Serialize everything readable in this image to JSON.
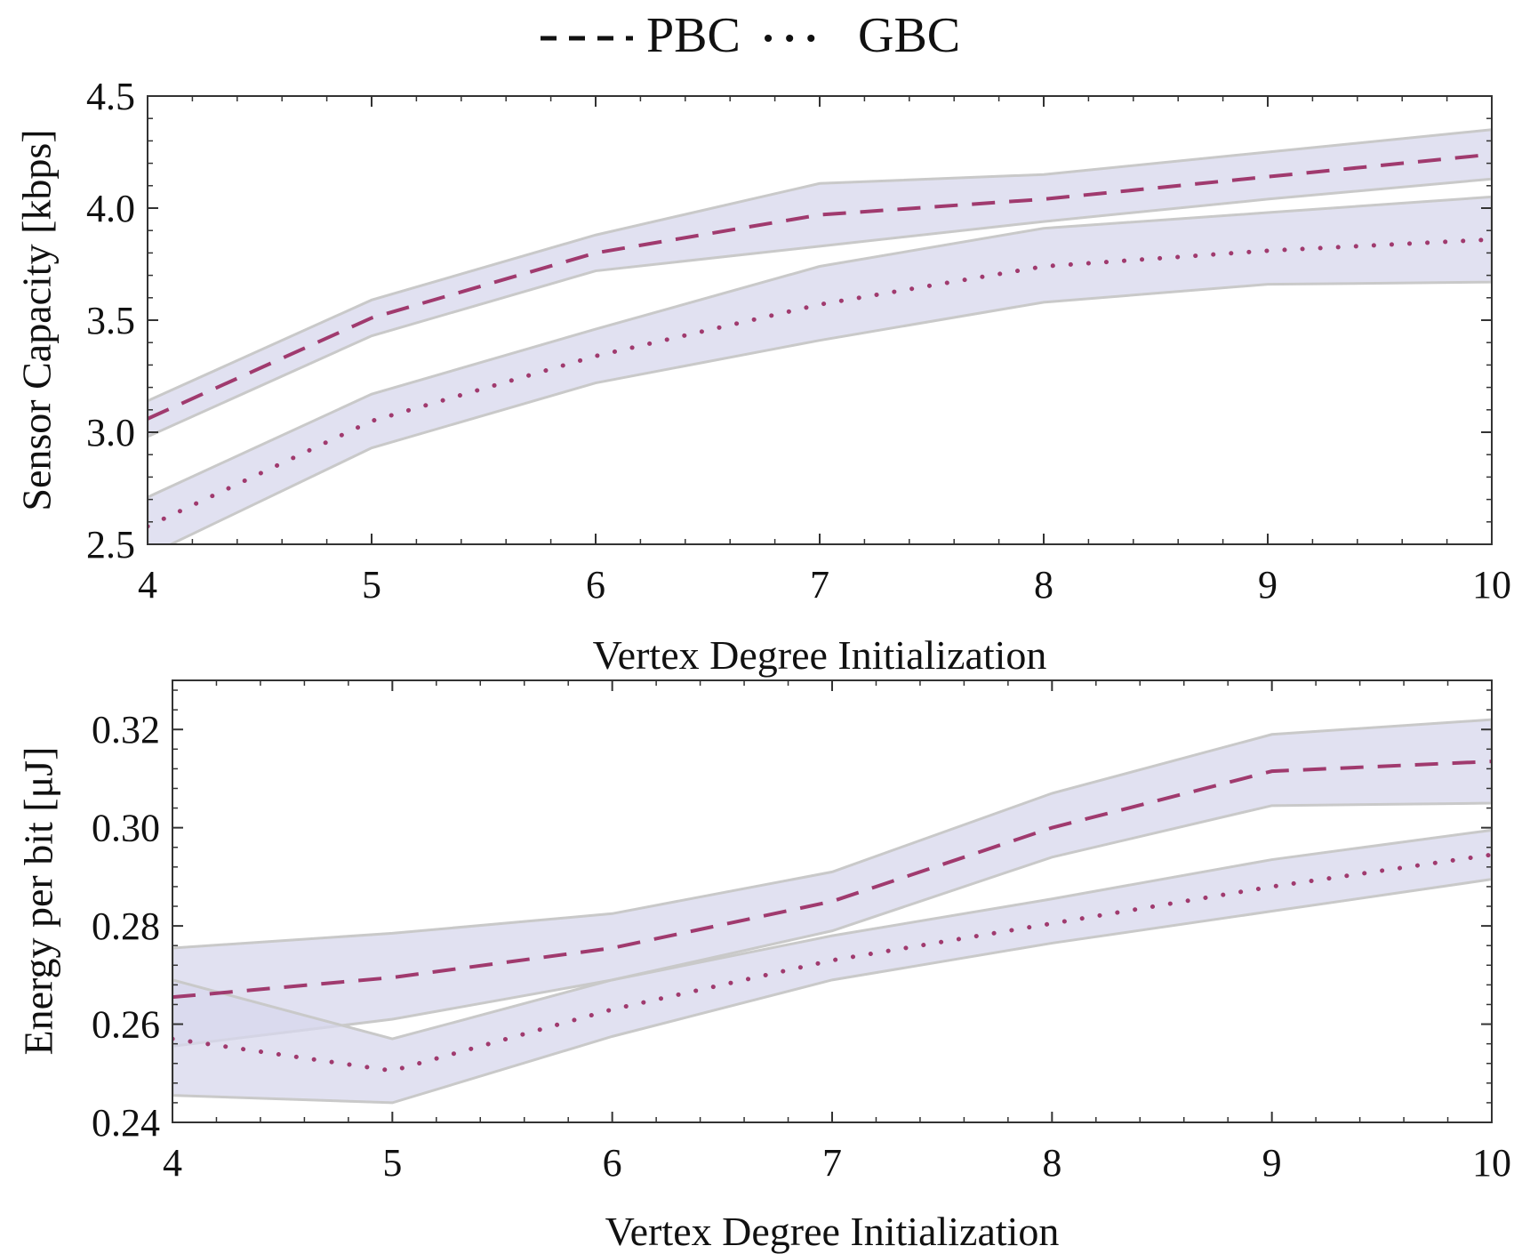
{
  "legend": {
    "items": [
      {
        "label": "PBC",
        "style": "dashed"
      },
      {
        "label": "GBC",
        "style": "dotted"
      }
    ]
  },
  "colors": {
    "line": "#a03a6e",
    "band": "#d7d7ec",
    "band_edge": "#c9c9c9",
    "overlap": "#b7b7dc",
    "axis": "#333333"
  },
  "chart_data": [
    {
      "type": "line",
      "title": "",
      "xlabel": "Vertex Degree Initialization",
      "ylabel": "Sensor Capacity [kbps]",
      "xlim": [
        4,
        10
      ],
      "ylim": [
        2.5,
        4.5
      ],
      "xticks": [
        4,
        5,
        6,
        7,
        8,
        9,
        10
      ],
      "yticks": [
        "2.5",
        "3.0",
        "3.5",
        "4.0",
        "4.5"
      ],
      "x": [
        4,
        5,
        6,
        7,
        8,
        9,
        10
      ],
      "series": [
        {
          "name": "PBC",
          "style": "dashed",
          "values": [
            3.06,
            3.51,
            3.8,
            3.97,
            4.04,
            4.14,
            4.24
          ],
          "lower": [
            2.98,
            3.43,
            3.72,
            3.83,
            3.94,
            4.04,
            4.13
          ],
          "upper": [
            3.14,
            3.59,
            3.88,
            4.11,
            4.15,
            4.25,
            4.35
          ]
        },
        {
          "name": "GBC",
          "style": "dotted",
          "values": [
            2.58,
            3.05,
            3.34,
            3.57,
            3.74,
            3.81,
            3.86
          ],
          "lower": [
            2.45,
            2.93,
            3.22,
            3.41,
            3.58,
            3.66,
            3.67
          ],
          "upper": [
            2.71,
            3.17,
            3.46,
            3.74,
            3.91,
            3.98,
            4.05
          ]
        }
      ]
    },
    {
      "type": "line",
      "title": "",
      "xlabel": "Vertex Degree Initialization",
      "ylabel": "Energy per bit [μJ]",
      "xlim": [
        4,
        10
      ],
      "ylim": [
        0.24,
        0.33
      ],
      "xticks": [
        4,
        5,
        6,
        7,
        8,
        9,
        10
      ],
      "yticks": [
        "0.24",
        "0.26",
        "0.28",
        "0.30",
        "0.32"
      ],
      "x": [
        4,
        5,
        6,
        7,
        8,
        9,
        10
      ],
      "series": [
        {
          "name": "PBC",
          "style": "dashed",
          "values": [
            0.2655,
            0.2695,
            0.2755,
            0.285,
            0.3,
            0.3115,
            0.3135
          ],
          "lower": [
            0.2555,
            0.261,
            0.269,
            0.279,
            0.294,
            0.3045,
            0.305
          ],
          "upper": [
            0.2755,
            0.2785,
            0.2825,
            0.291,
            0.307,
            0.319,
            0.322
          ]
        },
        {
          "name": "GBC",
          "style": "dotted",
          "values": [
            0.257,
            0.2505,
            0.263,
            0.273,
            0.2805,
            0.288,
            0.2945
          ],
          "lower": [
            0.2455,
            0.244,
            0.2575,
            0.269,
            0.2765,
            0.283,
            0.2895
          ],
          "upper": [
            0.269,
            0.257,
            0.269,
            0.278,
            0.2855,
            0.2935,
            0.2995
          ]
        }
      ]
    }
  ]
}
